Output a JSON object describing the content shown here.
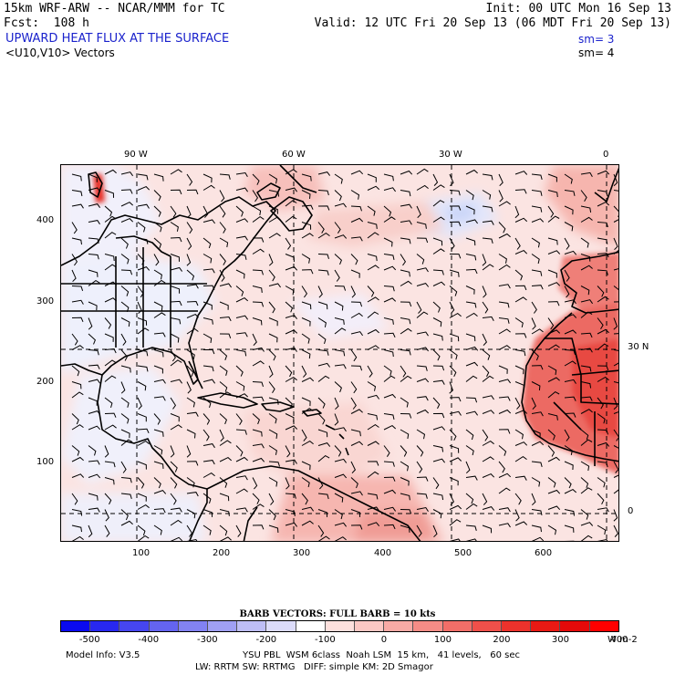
{
  "header": {
    "model_line": "15km WRF-ARW -- NCAR/MMM for TC",
    "fcst_line": "Fcst:  108 h",
    "field_name": "UPWARD HEAT FLUX AT THE SURFACE",
    "vector_name": "<U10,V10> Vectors",
    "init_line": "Init: 00 UTC Mon 16 Sep 13",
    "valid_line": "Valid: 12 UTC Fri 20 Sep 13 (06 MDT Fri 20 Sep 13)",
    "sm_field": "sm= 3",
    "sm_vector": "sm= 4"
  },
  "map": {
    "top_lon_labels": [
      "90 W",
      "60 W",
      "30 W",
      "0"
    ],
    "right_lat_labels": [
      "30 N",
      "0"
    ],
    "y_grid_labels": [
      "400",
      "300",
      "200",
      "100"
    ],
    "x_grid_labels": [
      "100",
      "200",
      "300",
      "400",
      "500",
      "600"
    ],
    "colors": {
      "background_ocean": "#fbe4e2",
      "land_outline": "#000000",
      "strong_positive": "#e8403a",
      "cold_negative": "#e8ecfc"
    }
  },
  "barb_title": "BARB VECTORS:  FULL BARB = 10 kts",
  "colorbar": {
    "labels": [
      "-500",
      "-400",
      "-300",
      "-200",
      "-100",
      "0",
      "100",
      "200",
      "300",
      "400"
    ],
    "units": "W m-2",
    "colors": [
      "#0a0af0",
      "#2828f0",
      "#4646f0",
      "#6464f0",
      "#8282f2",
      "#a0a0f4",
      "#bebef6",
      "#dcdcfa",
      "#ffffff",
      "#fde0dd",
      "#fbc8c4",
      "#f8aaa5",
      "#f58c86",
      "#f26e68",
      "#ef504a",
      "#ec322c",
      "#e81a14",
      "#e40a0a",
      "#ff0000"
    ]
  },
  "footer": {
    "model_info": "Model Info: V3.5",
    "physics_line1": "YSU PBL  WSM 6class  Noah LSM  15 km,   41 levels,   60 sec",
    "physics_line2": "LW: RRTM SW: RRTMG   DIFF: simple KM: 2D Smagor"
  }
}
